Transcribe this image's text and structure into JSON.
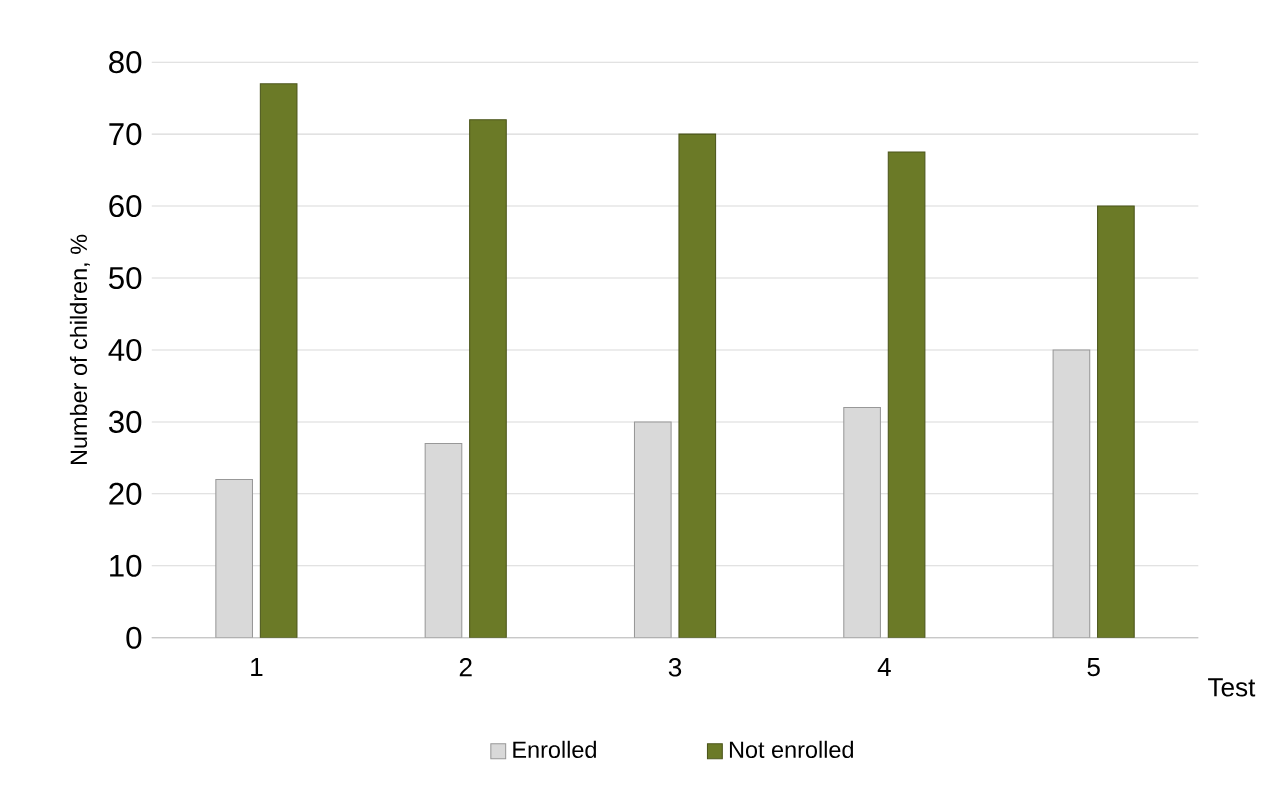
{
  "chart_data": {
    "type": "bar",
    "xlabel": "Test",
    "ylabel": "Number of children, %",
    "categories": [
      "1",
      "2",
      "3",
      "4",
      "5"
    ],
    "series": [
      {
        "name": "Enrolled",
        "color": "#d9d9d9",
        "values": [
          22,
          27,
          30,
          32,
          40
        ]
      },
      {
        "name": "Not enrolled",
        "color": "#6b7a27",
        "values": [
          77,
          72,
          70,
          67.5,
          60
        ]
      }
    ],
    "ylim": [
      0,
      80
    ],
    "yticks": [
      0,
      10,
      20,
      30,
      40,
      50,
      60,
      70,
      80
    ],
    "grid": "y",
    "legend": "bottom"
  }
}
